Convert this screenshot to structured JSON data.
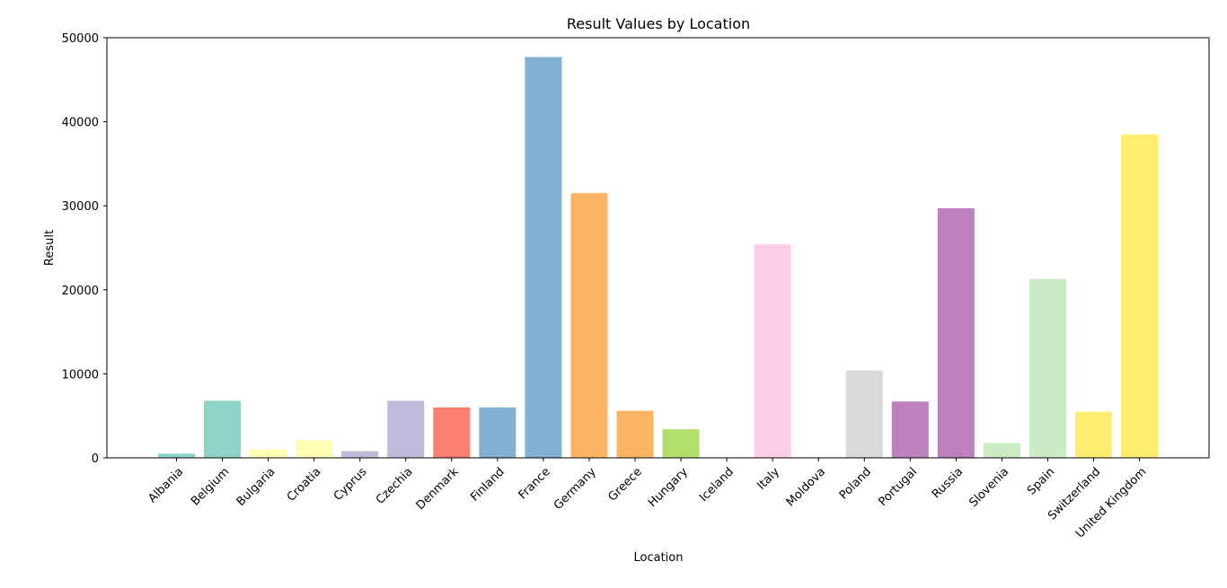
{
  "chart_data": {
    "type": "bar",
    "title": "Result Values by Location",
    "xlabel": "Location",
    "ylabel": "Result",
    "ylim": [
      0,
      50000
    ],
    "yticks": [
      0,
      10000,
      20000,
      30000,
      40000,
      50000
    ],
    "grid": false,
    "legend": "none",
    "categories": [
      "Albania",
      "Belgium",
      "Bulgaria",
      "Croatia",
      "Cyprus",
      "Czechia",
      "Denmark",
      "Finland",
      "France",
      "Germany",
      "Greece",
      "Hungary",
      "Iceland",
      "Italy",
      "Moldova",
      "Poland",
      "Portugal",
      "Russia",
      "Slovenia",
      "Spain",
      "Switzerland",
      "United Kingdom"
    ],
    "values": [
      500,
      6800,
      1000,
      2100,
      800,
      6800,
      6000,
      6000,
      47700,
      31500,
      5600,
      3400,
      30,
      25400,
      80,
      10400,
      6700,
      29700,
      1800,
      21300,
      5500,
      38500
    ],
    "colors": [
      "#8dd3c7",
      "#8dd3c7",
      "#ffffb3",
      "#ffffb3",
      "#bebada",
      "#bebada",
      "#fb8072",
      "#80b1d3",
      "#80b1d3",
      "#fdb462",
      "#fdb462",
      "#b3de69",
      "#b3de69",
      "#fccde5",
      "#fccde5",
      "#d9d9d9",
      "#bc80bd",
      "#bc80bd",
      "#ccebc5",
      "#ccebc5",
      "#ffed6f",
      "#ffed6f"
    ]
  }
}
